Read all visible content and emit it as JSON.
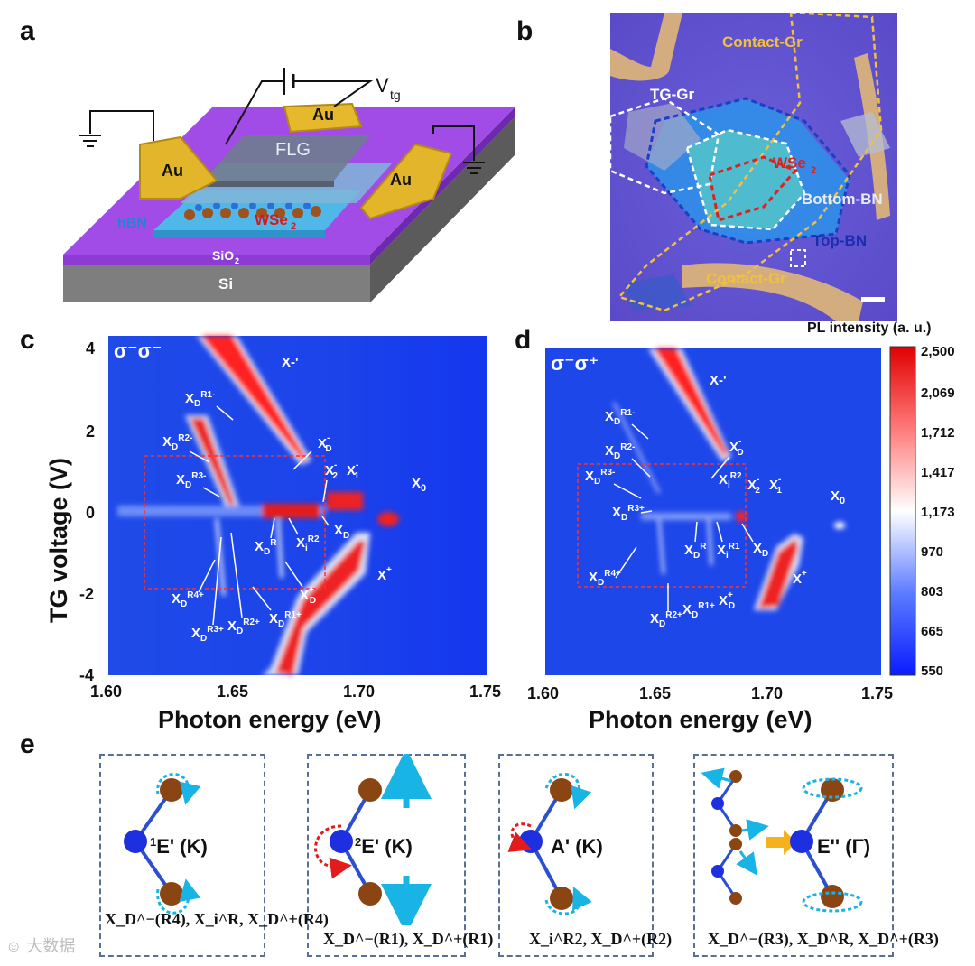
{
  "panels": {
    "a": "a",
    "b": "b",
    "c": "c",
    "d": "d",
    "e": "e"
  },
  "panel_a": {
    "labels": {
      "au": "Au",
      "vtg": "V",
      "vtg_sub": "tg",
      "flg": "FLG",
      "hbn": "hBN",
      "wse2": "WSe",
      "wse2_sub": "2",
      "sio2": "SiO",
      "sio2_sub": "2",
      "si": "Si"
    },
    "colors": {
      "substrate_top": "#9b3fe0",
      "si": "#7d7d7d",
      "gold": "#e3b52a",
      "hbn": "#4fb8e8"
    }
  },
  "panel_b": {
    "labels": {
      "contact_top": "Contact-Gr",
      "tg": "TG-Gr",
      "wse2": "WSe",
      "wse2_sub": "2",
      "bottom_bn": "Bottom-BN",
      "top_bn": "Top-BN",
      "contact_bottom": "Contact-Gr"
    }
  },
  "chart_data": [
    {
      "type": "heatmap",
      "panel": "c",
      "polarization": "σ⁻σ⁻",
      "xlabel": "Photon energy (eV)",
      "ylabel": "TG voltage (V)",
      "xlim": [
        1.6,
        1.75
      ],
      "ylim": [
        -4,
        4.5
      ],
      "xticks": [
        "1.60",
        "1.65",
        "1.70",
        "1.75"
      ],
      "yticks": [
        "4",
        "2",
        "0",
        "-2",
        "-4"
      ],
      "annotations": [
        "X-'",
        "XD R1-",
        "XD R2-",
        "XD R3-",
        "XD-",
        "X2-",
        "X1-",
        "X0",
        "XD R",
        "Xi R2",
        "XD",
        "X+",
        "XD R4+",
        "XD R3+",
        "XD R2+",
        "XD R1+",
        "XD+"
      ]
    },
    {
      "type": "heatmap",
      "panel": "d",
      "polarization": "σ⁻σ⁺",
      "xlabel": "Photon energy (eV)",
      "xlim": [
        1.6,
        1.75
      ],
      "ylim": [
        -4,
        4.5
      ],
      "xticks": [
        "1.60",
        "1.65",
        "1.70",
        "1.75"
      ],
      "colorbar": {
        "title": "PL intensity (a. u.)",
        "ticks": [
          "2,500",
          "2,069",
          "1,712",
          "1,417",
          "1,173",
          "970",
          "803",
          "665",
          "550"
        ],
        "range": [
          550,
          2500
        ]
      },
      "annotations": [
        "X-'",
        "XD R1-",
        "XD R2-",
        "XD R3-",
        "XD-",
        "Xi R2",
        "X2-",
        "X1-",
        "X0",
        "XD R3+",
        "XD R",
        "Xi R1",
        "XD",
        "X+",
        "XD R4+",
        "XD R2+",
        "XD R1+",
        "XD+"
      ]
    }
  ],
  "panel_e": {
    "modes": [
      {
        "label_sup": "1",
        "label": "E' (K)",
        "caption": "X_D^−(R4), X_i^R, X_D^+(R4)"
      },
      {
        "label_sup": "2",
        "label": "E' (K)",
        "caption": "X_D^−(R1), X_D^+(R1)"
      },
      {
        "label_sup": "",
        "label": "A' (K)",
        "caption": "X_i^R2, X_D^+(R2)"
      },
      {
        "label_sup": "",
        "label": "E'' (Γ)",
        "caption": "X_D^−(R3), X_D^R, X_D^+(R3)"
      }
    ],
    "watermark": "大数据"
  }
}
